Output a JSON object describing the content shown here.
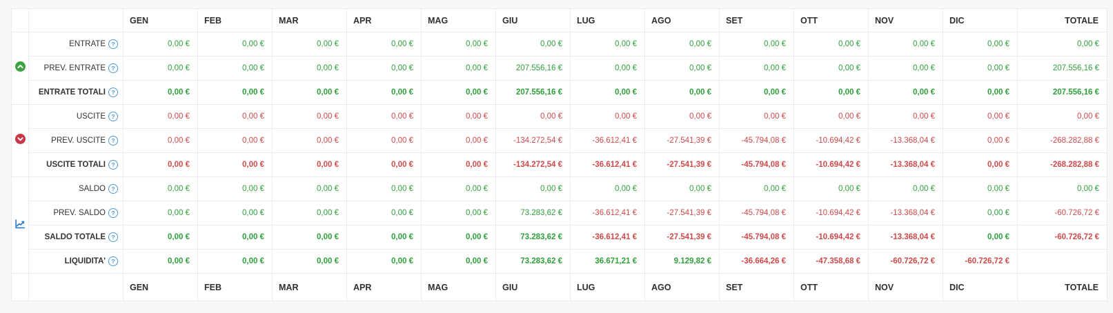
{
  "icons": {
    "help_glyph": "?"
  },
  "colors": {
    "green": "#2fa03a",
    "red": "#cf4a4a",
    "icon_green": "#3da344",
    "icon_red": "#c63747",
    "icon_blue": "#2a7cc9",
    "help_blue": "#4d9ad5"
  },
  "table": {
    "month_columns": [
      "GEN",
      "FEB",
      "MAR",
      "APR",
      "MAG",
      "GIU",
      "LUG",
      "AGO",
      "SET",
      "OTT",
      "NOV",
      "DIC"
    ],
    "total_column": "TOTALE",
    "groups": [
      {
        "name": "entrate",
        "icon": "arrow-up-circle-icon",
        "rows": [
          {
            "label": "ENTRATE",
            "bold": false,
            "cells": [
              {
                "t": "0,00 €",
                "c": "green"
              },
              {
                "t": "0,00 €",
                "c": "green"
              },
              {
                "t": "0,00 €",
                "c": "green"
              },
              {
                "t": "0,00 €",
                "c": "green"
              },
              {
                "t": "0,00 €",
                "c": "green"
              },
              {
                "t": "0,00 €",
                "c": "green"
              },
              {
                "t": "0,00 €",
                "c": "green"
              },
              {
                "t": "0,00 €",
                "c": "green"
              },
              {
                "t": "0,00 €",
                "c": "green"
              },
              {
                "t": "0,00 €",
                "c": "green"
              },
              {
                "t": "0,00 €",
                "c": "green"
              },
              {
                "t": "0,00 €",
                "c": "green"
              },
              {
                "t": "0,00 €",
                "c": "green"
              }
            ]
          },
          {
            "label": "PREV. ENTRATE",
            "bold": false,
            "cells": [
              {
                "t": "0,00 €",
                "c": "green"
              },
              {
                "t": "0,00 €",
                "c": "green"
              },
              {
                "t": "0,00 €",
                "c": "green"
              },
              {
                "t": "0,00 €",
                "c": "green"
              },
              {
                "t": "0,00 €",
                "c": "green"
              },
              {
                "t": "207.556,16 €",
                "c": "green"
              },
              {
                "t": "0,00 €",
                "c": "green"
              },
              {
                "t": "0,00 €",
                "c": "green"
              },
              {
                "t": "0,00 €",
                "c": "green"
              },
              {
                "t": "0,00 €",
                "c": "green"
              },
              {
                "t": "0,00 €",
                "c": "green"
              },
              {
                "t": "0,00 €",
                "c": "green"
              },
              {
                "t": "207.556,16 €",
                "c": "green"
              }
            ]
          },
          {
            "label": "ENTRATE TOTALI",
            "bold": true,
            "cells": [
              {
                "t": "0,00 €",
                "c": "green"
              },
              {
                "t": "0,00 €",
                "c": "green"
              },
              {
                "t": "0,00 €",
                "c": "green"
              },
              {
                "t": "0,00 €",
                "c": "green"
              },
              {
                "t": "0,00 €",
                "c": "green"
              },
              {
                "t": "207.556,16 €",
                "c": "green"
              },
              {
                "t": "0,00 €",
                "c": "green"
              },
              {
                "t": "0,00 €",
                "c": "green"
              },
              {
                "t": "0,00 €",
                "c": "green"
              },
              {
                "t": "0,00 €",
                "c": "green"
              },
              {
                "t": "0,00 €",
                "c": "green"
              },
              {
                "t": "0,00 €",
                "c": "green"
              },
              {
                "t": "207.556,16 €",
                "c": "green"
              }
            ]
          }
        ]
      },
      {
        "name": "uscite",
        "icon": "arrow-down-circle-icon",
        "rows": [
          {
            "label": "USCITE",
            "bold": false,
            "cells": [
              {
                "t": "0,00 €",
                "c": "red"
              },
              {
                "t": "0,00 €",
                "c": "red"
              },
              {
                "t": "0,00 €",
                "c": "red"
              },
              {
                "t": "0,00 €",
                "c": "red"
              },
              {
                "t": "0,00 €",
                "c": "red"
              },
              {
                "t": "0,00 €",
                "c": "red"
              },
              {
                "t": "0,00 €",
                "c": "red"
              },
              {
                "t": "0,00 €",
                "c": "red"
              },
              {
                "t": "0,00 €",
                "c": "red"
              },
              {
                "t": "0,00 €",
                "c": "red"
              },
              {
                "t": "0,00 €",
                "c": "red"
              },
              {
                "t": "0,00 €",
                "c": "red"
              },
              {
                "t": "0,00 €",
                "c": "red"
              }
            ]
          },
          {
            "label": "PREV. USCITE",
            "bold": false,
            "cells": [
              {
                "t": "0,00 €",
                "c": "red"
              },
              {
                "t": "0,00 €",
                "c": "red"
              },
              {
                "t": "0,00 €",
                "c": "red"
              },
              {
                "t": "0,00 €",
                "c": "red"
              },
              {
                "t": "0,00 €",
                "c": "red"
              },
              {
                "t": "-134.272,54 €",
                "c": "red"
              },
              {
                "t": "-36.612,41 €",
                "c": "red"
              },
              {
                "t": "-27.541,39 €",
                "c": "red"
              },
              {
                "t": "-45.794,08 €",
                "c": "red"
              },
              {
                "t": "-10.694,42 €",
                "c": "red"
              },
              {
                "t": "-13.368,04 €",
                "c": "red"
              },
              {
                "t": "0,00 €",
                "c": "red"
              },
              {
                "t": "-268.282,88 €",
                "c": "red"
              }
            ]
          },
          {
            "label": "USCITE TOTALI",
            "bold": true,
            "cells": [
              {
                "t": "0,00 €",
                "c": "red"
              },
              {
                "t": "0,00 €",
                "c": "red"
              },
              {
                "t": "0,00 €",
                "c": "red"
              },
              {
                "t": "0,00 €",
                "c": "red"
              },
              {
                "t": "0,00 €",
                "c": "red"
              },
              {
                "t": "-134.272,54 €",
                "c": "red"
              },
              {
                "t": "-36.612,41 €",
                "c": "red"
              },
              {
                "t": "-27.541,39 €",
                "c": "red"
              },
              {
                "t": "-45.794,08 €",
                "c": "red"
              },
              {
                "t": "-10.694,42 €",
                "c": "red"
              },
              {
                "t": "-13.368,04 €",
                "c": "red"
              },
              {
                "t": "0,00 €",
                "c": "red"
              },
              {
                "t": "-268.282,88 €",
                "c": "red"
              }
            ]
          }
        ]
      },
      {
        "name": "saldo",
        "icon": "chart-line-icon",
        "rows": [
          {
            "label": "SALDO",
            "bold": false,
            "cells": [
              {
                "t": "0,00 €",
                "c": "green"
              },
              {
                "t": "0,00 €",
                "c": "green"
              },
              {
                "t": "0,00 €",
                "c": "green"
              },
              {
                "t": "0,00 €",
                "c": "green"
              },
              {
                "t": "0,00 €",
                "c": "green"
              },
              {
                "t": "0,00 €",
                "c": "green"
              },
              {
                "t": "0,00 €",
                "c": "green"
              },
              {
                "t": "0,00 €",
                "c": "green"
              },
              {
                "t": "0,00 €",
                "c": "green"
              },
              {
                "t": "0,00 €",
                "c": "green"
              },
              {
                "t": "0,00 €",
                "c": "green"
              },
              {
                "t": "0,00 €",
                "c": "green"
              },
              {
                "t": "0,00 €",
                "c": "green"
              }
            ]
          },
          {
            "label": "PREV. SALDO",
            "bold": false,
            "cells": [
              {
                "t": "0,00 €",
                "c": "green"
              },
              {
                "t": "0,00 €",
                "c": "green"
              },
              {
                "t": "0,00 €",
                "c": "green"
              },
              {
                "t": "0,00 €",
                "c": "green"
              },
              {
                "t": "0,00 €",
                "c": "green"
              },
              {
                "t": "73.283,62 €",
                "c": "green"
              },
              {
                "t": "-36.612,41 €",
                "c": "red"
              },
              {
                "t": "-27.541,39 €",
                "c": "red"
              },
              {
                "t": "-45.794,08 €",
                "c": "red"
              },
              {
                "t": "-10.694,42 €",
                "c": "red"
              },
              {
                "t": "-13.368,04 €",
                "c": "red"
              },
              {
                "t": "0,00 €",
                "c": "green"
              },
              {
                "t": "-60.726,72 €",
                "c": "red"
              }
            ]
          },
          {
            "label": "SALDO TOTALE",
            "bold": true,
            "cells": [
              {
                "t": "0,00 €",
                "c": "green"
              },
              {
                "t": "0,00 €",
                "c": "green"
              },
              {
                "t": "0,00 €",
                "c": "green"
              },
              {
                "t": "0,00 €",
                "c": "green"
              },
              {
                "t": "0,00 €",
                "c": "green"
              },
              {
                "t": "73.283,62 €",
                "c": "green"
              },
              {
                "t": "-36.612,41 €",
                "c": "red"
              },
              {
                "t": "-27.541,39 €",
                "c": "red"
              },
              {
                "t": "-45.794,08 €",
                "c": "red"
              },
              {
                "t": "-10.694,42 €",
                "c": "red"
              },
              {
                "t": "-13.368,04 €",
                "c": "red"
              },
              {
                "t": "0,00 €",
                "c": "green"
              },
              {
                "t": "-60.726,72 €",
                "c": "red"
              }
            ]
          },
          {
            "label": "LIQUIDITA'",
            "bold": true,
            "cells": [
              {
                "t": "0,00 €",
                "c": "green"
              },
              {
                "t": "0,00 €",
                "c": "green"
              },
              {
                "t": "0,00 €",
                "c": "green"
              },
              {
                "t": "0,00 €",
                "c": "green"
              },
              {
                "t": "0,00 €",
                "c": "green"
              },
              {
                "t": "73.283,62 €",
                "c": "green"
              },
              {
                "t": "36.671,21 €",
                "c": "green"
              },
              {
                "t": "9.129,82 €",
                "c": "green"
              },
              {
                "t": "-36.664,26 €",
                "c": "red"
              },
              {
                "t": "-47.358,68 €",
                "c": "red"
              },
              {
                "t": "-60.726,72 €",
                "c": "red"
              },
              {
                "t": "-60.726,72 €",
                "c": "red"
              },
              {
                "t": "",
                "c": null
              }
            ]
          }
        ]
      }
    ]
  }
}
